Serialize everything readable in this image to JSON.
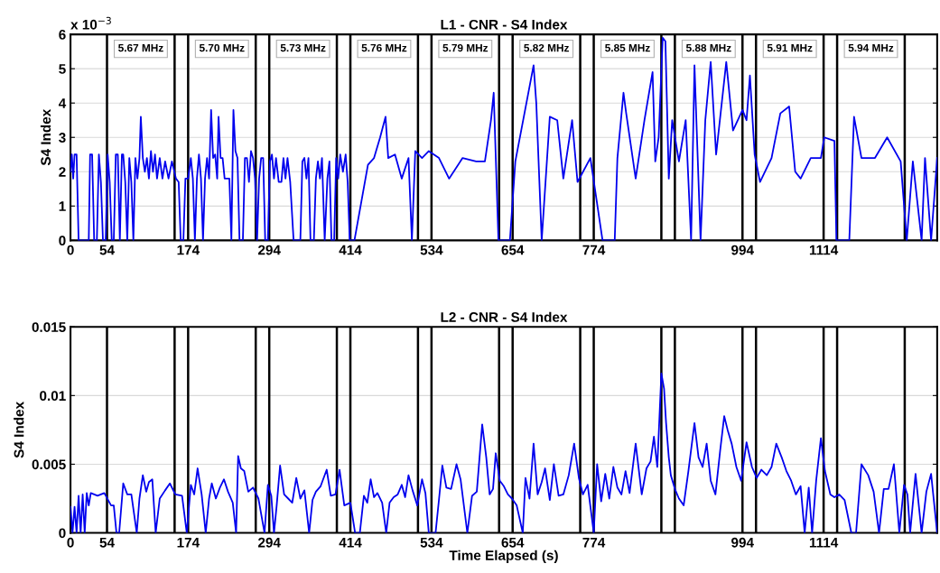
{
  "chart_data": [
    {
      "type": "line",
      "title": "L1 - CNR - S4 Index",
      "ylabel": "S4 Index",
      "xlim": [
        0,
        1282
      ],
      "xticks": [
        0,
        54,
        174,
        294,
        414,
        534,
        654,
        774,
        994,
        1114
      ],
      "ylim": [
        0,
        6
      ],
      "yticks": [
        0,
        1,
        2,
        3,
        4,
        5,
        6
      ],
      "grid": "y",
      "marker": "none",
      "line_style": "solid",
      "annotations": [
        "x 10$^{−3}$",
        "5.67 MHz",
        "5.70 MHz",
        "5.73 MHz",
        "5.76 MHz",
        "5.79 MHz",
        "5.82 MHz",
        "5.85 MHz",
        "5.88 MHz",
        "5.91 MHz",
        "5.94 MHz"
      ],
      "ref_lines": [
        {
          "axis": "x",
          "value": 54,
          "color": "#000000"
        },
        {
          "axis": "x",
          "value": 154,
          "color": "#000000"
        },
        {
          "axis": "x",
          "value": 174,
          "color": "#000000"
        },
        {
          "axis": "x",
          "value": 274,
          "color": "#000000"
        },
        {
          "axis": "x",
          "value": 294,
          "color": "#000000"
        },
        {
          "axis": "x",
          "value": 394,
          "color": "#000000"
        },
        {
          "axis": "x",
          "value": 414,
          "color": "#000000"
        },
        {
          "axis": "x",
          "value": 514,
          "color": "#000000"
        },
        {
          "axis": "x",
          "value": 534,
          "color": "#000000"
        },
        {
          "axis": "x",
          "value": 634,
          "color": "#000000"
        },
        {
          "axis": "x",
          "value": 654,
          "color": "#000000"
        },
        {
          "axis": "x",
          "value": 754,
          "color": "#000000"
        },
        {
          "axis": "x",
          "value": 774,
          "color": "#000000"
        },
        {
          "axis": "x",
          "value": 874,
          "color": "#000000"
        },
        {
          "axis": "x",
          "value": 894,
          "color": "#000000"
        },
        {
          "axis": "x",
          "value": 994,
          "color": "#000000"
        },
        {
          "axis": "x",
          "value": 1014,
          "color": "#000000"
        },
        {
          "axis": "x",
          "value": 1114,
          "color": "#000000"
        },
        {
          "axis": "x",
          "value": 1134,
          "color": "#000000"
        },
        {
          "axis": "x",
          "value": 1234,
          "color": "#000000"
        }
      ],
      "series": [
        {
          "color": "#0000ee",
          "x": [
            0,
            2,
            4,
            6,
            9,
            12,
            27,
            29,
            32,
            35,
            39,
            42,
            45,
            48,
            52,
            55,
            58,
            61,
            64,
            67,
            70,
            73,
            76,
            78,
            81,
            84,
            87,
            90,
            93,
            96,
            99,
            102,
            104,
            107,
            110,
            113,
            116,
            119,
            122,
            125,
            128,
            132,
            136,
            140,
            145,
            150,
            156,
            160,
            163,
            167,
            170,
            174,
            178,
            181,
            184,
            187,
            190,
            193,
            196,
            199,
            202,
            205,
            208,
            211,
            214,
            217,
            219,
            222,
            225,
            228,
            235,
            238,
            241,
            244,
            247,
            250,
            255,
            258,
            261,
            264,
            267,
            270,
            273,
            276,
            279,
            282,
            285,
            288,
            292,
            295,
            298,
            301,
            304,
            308,
            312,
            315,
            318,
            321,
            325,
            330,
            340,
            343,
            346,
            349,
            352,
            355,
            360,
            363,
            366,
            369,
            372,
            376,
            380,
            383,
            386,
            390,
            393,
            396,
            399,
            403,
            407,
            410,
            413,
            420,
            440,
            449,
            458,
            466,
            470,
            480,
            490,
            500,
            505,
            510,
            520,
            530,
            545,
            560,
            580,
            600,
            613,
            622,
            626,
            633,
            650,
            658,
            685,
            689,
            697,
            709,
            720,
            729,
            742,
            750,
            769,
            787,
            805,
            809,
            818,
            822,
            836,
            849,
            861,
            865,
            870,
            876,
            880,
            885,
            890,
            900,
            910,
            918,
            923,
            932,
            939,
            947,
            955,
            970,
            980,
            994,
            1000,
            1005,
            1012,
            1020,
            1037,
            1050,
            1063,
            1072,
            1080,
            1095,
            1110,
            1115,
            1130,
            1133,
            1152,
            1159,
            1170,
            1190,
            1208,
            1228,
            1237,
            1246,
            1259,
            1264,
            1273,
            1282
          ],
          "values": [
            2.0,
            2.5,
            1.8,
            2.5,
            2.5,
            0,
            0,
            2.5,
            2.5,
            0,
            0,
            2.5,
            1.7,
            0,
            0,
            2.5,
            1.7,
            0,
            0,
            2.5,
            2.5,
            0,
            2.5,
            2.5,
            1.7,
            0,
            2.4,
            1.7,
            0,
            2.4,
            1.8,
            2.4,
            3.6,
            2.4,
            2.0,
            2.4,
            1.8,
            2.6,
            2.0,
            2.5,
            1.8,
            2.4,
            1.8,
            2.3,
            1.8,
            2.3,
            1.8,
            1.7,
            0,
            0,
            1.8,
            1.8,
            2.4,
            1.8,
            0,
            1.8,
            2.5,
            1.8,
            0,
            1.8,
            2.4,
            1.8,
            3.8,
            2.4,
            2.5,
            1.8,
            3.6,
            2.4,
            2.4,
            1.8,
            1.8,
            0,
            3.8,
            2.6,
            2.4,
            0,
            0,
            2.4,
            2.4,
            1.7,
            2.6,
            2.4,
            1.8,
            0,
            1.8,
            2.4,
            2.4,
            0,
            0,
            2.3,
            2.5,
            1.8,
            2.4,
            1.7,
            1.7,
            2.4,
            1.8,
            2.4,
            1.7,
            0,
            0,
            2.3,
            2.4,
            1.8,
            2.4,
            0,
            0,
            1.8,
            2.3,
            1.8,
            2.4,
            0,
            1.8,
            2.3,
            0,
            0,
            2.4,
            1.8,
            2.5,
            2.0,
            2.5,
            1.7,
            0,
            0,
            2.2,
            2.4,
            3.0,
            3.6,
            2.4,
            2.5,
            1.8,
            2.4,
            0,
            2.6,
            2.4,
            2.6,
            2.4,
            1.8,
            2.4,
            2.3,
            2.3,
            3.5,
            4.3,
            0,
            0,
            2.3,
            5.1,
            4.0,
            0,
            3.6,
            3.5,
            1.8,
            3.5,
            1.7,
            2.4,
            0,
            0,
            2.4,
            4.3,
            3.7,
            1.8,
            3.5,
            4.9,
            2.3,
            3.0,
            5.9,
            5.8,
            1.8,
            3.5,
            2.3,
            3.5,
            0,
            5.1,
            0,
            3.5,
            5.2,
            2.5,
            5.2,
            3.2,
            3.8,
            3.5,
            4.8,
            2.5,
            1.7,
            2.4,
            3.7,
            3.9,
            2.0,
            1.8,
            2.4,
            2.4,
            3.0,
            2.9,
            0,
            0,
            3.6,
            2.4,
            2.4,
            3.0,
            2.3,
            0,
            2.3,
            0,
            2.4,
            0,
            2.4
          ]
        }
      ]
    },
    {
      "type": "line",
      "title": "L2 - CNR - S4 Index",
      "xlabel": "Time Elapsed (s)",
      "ylabel": "S4 Index",
      "xlim": [
        0,
        1282
      ],
      "xticks": [
        0,
        54,
        174,
        294,
        414,
        534,
        654,
        774,
        994,
        1114
      ],
      "ylim": [
        0,
        0.015
      ],
      "yticks": [
        0,
        0.005,
        0.01,
        0.015
      ],
      "grid": "y",
      "marker": "none",
      "line_style": "solid",
      "ref_lines": [
        {
          "axis": "x",
          "value": 54,
          "color": "#000000"
        },
        {
          "axis": "x",
          "value": 154,
          "color": "#000000"
        },
        {
          "axis": "x",
          "value": 174,
          "color": "#000000"
        },
        {
          "axis": "x",
          "value": 274,
          "color": "#000000"
        },
        {
          "axis": "x",
          "value": 294,
          "color": "#000000"
        },
        {
          "axis": "x",
          "value": 394,
          "color": "#000000"
        },
        {
          "axis": "x",
          "value": 414,
          "color": "#000000"
        },
        {
          "axis": "x",
          "value": 514,
          "color": "#000000"
        },
        {
          "axis": "x",
          "value": 534,
          "color": "#000000"
        },
        {
          "axis": "x",
          "value": 634,
          "color": "#000000"
        },
        {
          "axis": "x",
          "value": 654,
          "color": "#000000"
        },
        {
          "axis": "x",
          "value": 754,
          "color": "#000000"
        },
        {
          "axis": "x",
          "value": 774,
          "color": "#000000"
        },
        {
          "axis": "x",
          "value": 874,
          "color": "#000000"
        },
        {
          "axis": "x",
          "value": 894,
          "color": "#000000"
        },
        {
          "axis": "x",
          "value": 994,
          "color": "#000000"
        },
        {
          "axis": "x",
          "value": 1014,
          "color": "#000000"
        },
        {
          "axis": "x",
          "value": 1114,
          "color": "#000000"
        },
        {
          "axis": "x",
          "value": 1134,
          "color": "#000000"
        },
        {
          "axis": "x",
          "value": 1234,
          "color": "#000000"
        }
      ],
      "series": [
        {
          "color": "#0000ee",
          "x": [
            0,
            3,
            6,
            9,
            12,
            15,
            18,
            21,
            24,
            27,
            30,
            40,
            50,
            60,
            64,
            68,
            72,
            78,
            84,
            90,
            98,
            102,
            107,
            112,
            116,
            121,
            126,
            132,
            140,
            147,
            155,
            165,
            172,
            178,
            183,
            188,
            194,
            200,
            205,
            209,
            215,
            221,
            227,
            233,
            240,
            245,
            248,
            252,
            257,
            263,
            270,
            278,
            287,
            292,
            297,
            301,
            305,
            310,
            316,
            322,
            328,
            334,
            340,
            346,
            353,
            358,
            363,
            370,
            379,
            385,
            392,
            398,
            405,
            414,
            421,
            428,
            434,
            439,
            444,
            449,
            454,
            461,
            467,
            472,
            478,
            484,
            490,
            495,
            500,
            506,
            513,
            520,
            525,
            530,
            535,
            540,
            545,
            550,
            556,
            563,
            571,
            577,
            587,
            594,
            601,
            609,
            615,
            620,
            625,
            629,
            635,
            641,
            647,
            653,
            660,
            669,
            673,
            679,
            685,
            691,
            697,
            702,
            709,
            715,
            722,
            729,
            737,
            745,
            752,
            758,
            765,
            774,
            779,
            785,
            791,
            797,
            803,
            809,
            815,
            821,
            827,
            836,
            845,
            852,
            858,
            863,
            868,
            874,
            878,
            881,
            885,
            888,
            894,
            900,
            907,
            914,
            923,
            929,
            935,
            941,
            947,
            954,
            961,
            967,
            972,
            978,
            985,
            992,
            1000,
            1008,
            1015,
            1022,
            1030,
            1037,
            1044,
            1052,
            1059,
            1066,
            1073,
            1080,
            1086,
            1092,
            1097,
            1103,
            1110,
            1116,
            1124,
            1130,
            1137,
            1145,
            1155,
            1162,
            1170,
            1180,
            1188,
            1196,
            1203,
            1210,
            1218,
            1226,
            1233,
            1238,
            1242,
            1250,
            1259,
            1266,
            1273,
            1282
          ],
          "values": [
            0.0019,
            0,
            0.0019,
            0,
            0.0027,
            0,
            0.0028,
            0,
            0.0029,
            0.002,
            0.0029,
            0.0027,
            0.0029,
            0.002,
            0.002,
            0,
            0,
            0.0036,
            0.0028,
            0.0028,
            0,
            0.0025,
            0.0042,
            0.003,
            0.0037,
            0.0039,
            0,
            0.0025,
            0.0031,
            0.0036,
            0.0028,
            0.0027,
            0,
            0.0035,
            0.0028,
            0.0047,
            0.0028,
            0,
            0.0025,
            0.0036,
            0.0025,
            0.0033,
            0.0039,
            0.003,
            0.0022,
            0,
            0.0056,
            0.0047,
            0.0045,
            0.003,
            0.0033,
            0.0025,
            0,
            0.0035,
            0.0027,
            0,
            0.002,
            0.0049,
            0.0028,
            0.0025,
            0.0022,
            0.004,
            0.0025,
            0.0031,
            0,
            0.0024,
            0.003,
            0.0034,
            0.0046,
            0.0027,
            0.0028,
            0.0046,
            0.002,
            0.0022,
            0,
            0,
            0.0027,
            0.0022,
            0.0039,
            0.0026,
            0.0029,
            0.0022,
            0,
            0.0022,
            0.0026,
            0.0028,
            0.0035,
            0.0026,
            0.0042,
            0.0031,
            0.002,
            0.0039,
            0.0029,
            0,
            0,
            0,
            0.0024,
            0.0049,
            0.0033,
            0.0032,
            0.005,
            0.0039,
            0,
            0.0027,
            0.003,
            0.0079,
            0.0055,
            0.0028,
            0.0032,
            0.0058,
            0.0038,
            0.0034,
            0.0028,
            0.0025,
            0.002,
            0,
            0.004,
            0.0025,
            0.0065,
            0.0028,
            0.0037,
            0.0047,
            0.0024,
            0.005,
            0.0027,
            0.0028,
            0.0042,
            0.0065,
            0.004,
            0.0028,
            0.0035,
            0,
            0.005,
            0.0023,
            0.0043,
            0.0025,
            0.0048,
            0.0033,
            0.0028,
            0.0045,
            0.0029,
            0.0065,
            0.0028,
            0.0047,
            0.0052,
            0.007,
            0.0048,
            0.0116,
            0.0105,
            0.008,
            0.0055,
            0.0042,
            0.0032,
            0.0025,
            0.002,
            0.0045,
            0.008,
            0.0055,
            0.0048,
            0.0065,
            0.0038,
            0.0028,
            0.006,
            0.0085,
            0.0075,
            0.0065,
            0.0048,
            0.0038,
            0.0066,
            0.0048,
            0.004,
            0.0046,
            0.0042,
            0.0048,
            0.0065,
            0.0055,
            0.0045,
            0.0038,
            0.0028,
            0.0034,
            0,
            0.0033,
            0,
            0.0038,
            0.0069,
            0.0045,
            0.0028,
            0.0026,
            0.0028,
            0.0024,
            0,
            0,
            0.005,
            0.0042,
            0.003,
            0,
            0.0032,
            0.0032,
            0.005,
            0,
            0.0035,
            0.0028,
            0,
            0.0043,
            0,
            0.003,
            0.0043,
            0
          ]
        }
      ]
    }
  ]
}
